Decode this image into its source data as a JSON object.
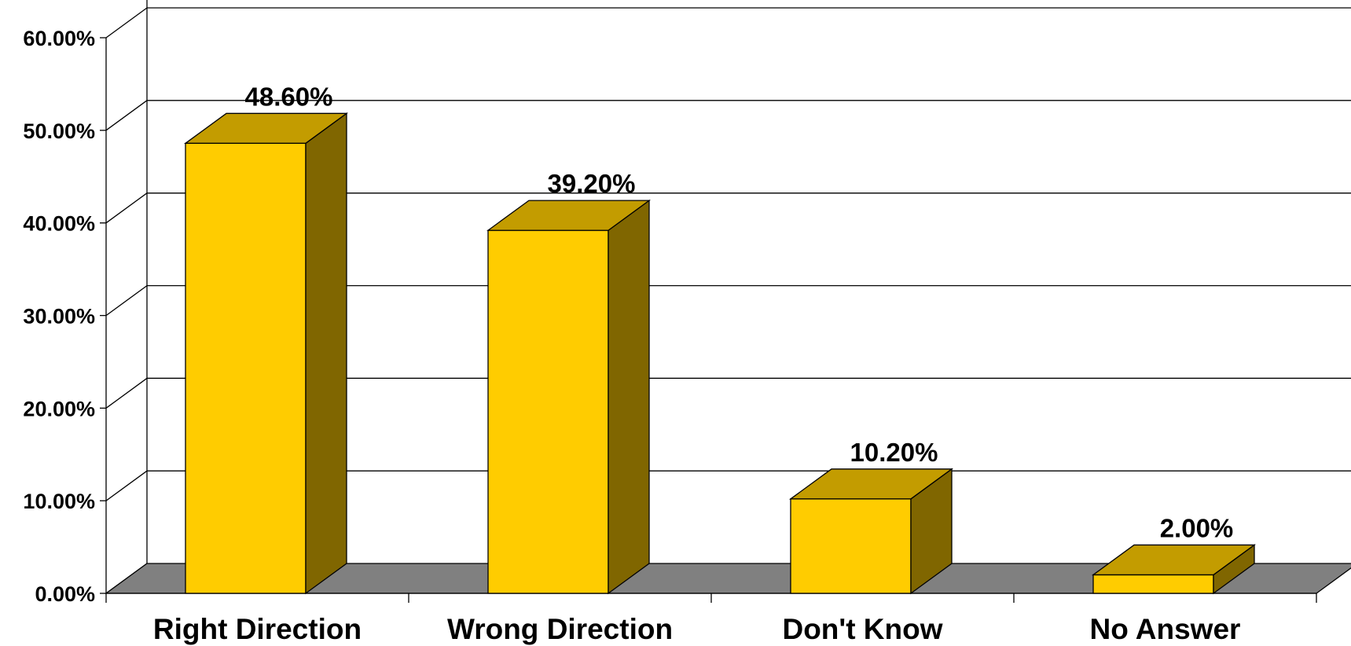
{
  "chart_data": {
    "type": "bar",
    "categories": [
      "Right Direction",
      "Wrong Direction",
      "Don't Know",
      "No Answer"
    ],
    "values": [
      48.6,
      39.2,
      10.2,
      2.0
    ],
    "value_labels": [
      "48.60%",
      "39.20%",
      "10.20%",
      "2.00%"
    ],
    "ylim": [
      0,
      60
    ],
    "yticks": [
      0,
      10,
      20,
      30,
      40,
      50,
      60
    ],
    "ytick_labels": [
      "0.00%",
      "10.00%",
      "20.00%",
      "30.00%",
      "40.00%",
      "50.00%",
      "60.00%"
    ],
    "title": "",
    "xlabel": "",
    "ylabel": "",
    "grid": true,
    "style": "3d-bar",
    "colors": {
      "bar_front": "#FFCC00",
      "bar_top": "#C39C00",
      "bar_side": "#806600",
      "floor": "#808080",
      "gridline": "#000000"
    }
  }
}
